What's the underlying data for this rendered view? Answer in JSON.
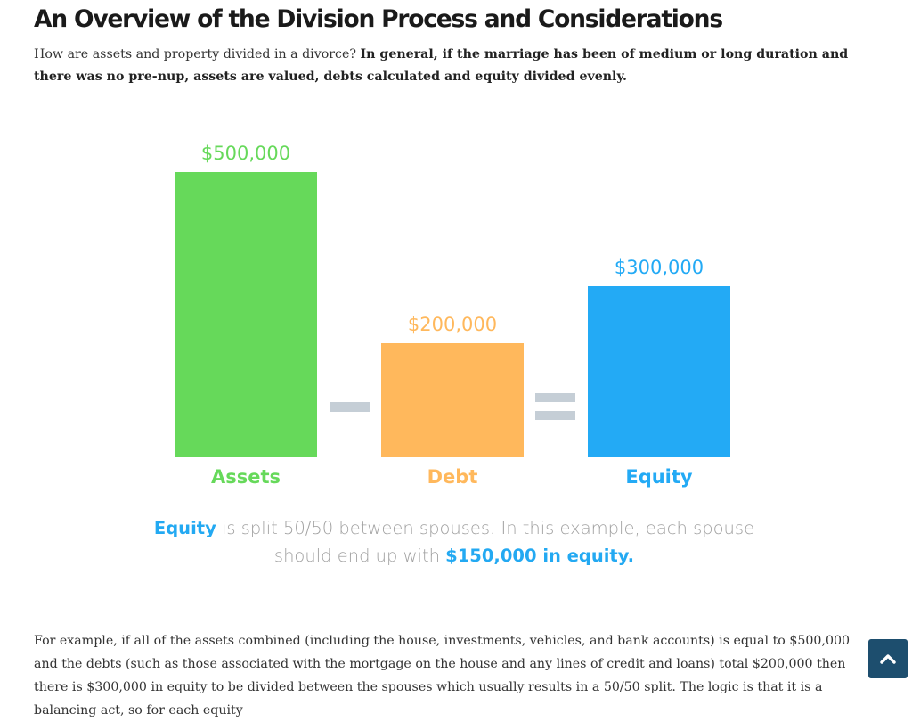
{
  "article": {
    "title": "An Overview of the Division Process and Considerations",
    "intro_plain": "How are assets and property divided in a divorce? ",
    "intro_bold": "In general, if the marriage has been of medium or long duration and there was no pre-nup, assets are valued, debts calculated and equity divided evenly.",
    "body_text": "For example, if all of the assets combined (including the house, investments, vehicles, and bank accounts) is equal to $500,000 and the debts (such as those associated with the mortgage on the house and any lines of credit and loans) total $200,000 then there is $300,000 in equity to be divided between the spouses which usually results in a 50/50 split. The logic is that it is a balancing act, so for each equity"
  },
  "infographic": {
    "caption": {
      "lead": "Equity",
      "middle": " is split 50/50 between spouses. In this example, each spouse should end up with ",
      "emphasis": "$150,000 in equity."
    },
    "operators": {
      "minus": "−",
      "equals": "="
    },
    "operator_color": "#c5ced6"
  },
  "chart_data": {
    "type": "bar",
    "title": "",
    "xlabel": "",
    "ylabel": "",
    "categories": [
      "Assets",
      "Debt",
      "Equity"
    ],
    "values": [
      500000,
      200000,
      300000
    ],
    "value_labels": [
      "$500,000",
      "$200,000",
      "$300,000"
    ],
    "colors": [
      "#66d95a",
      "#ffb85c",
      "#23aaf5"
    ],
    "ylim": [
      0,
      500000
    ],
    "grid": false,
    "legend": "none"
  },
  "ui": {
    "back_to_top_icon": "chevron-up-icon",
    "back_to_top_color": "#1d4e6e"
  }
}
